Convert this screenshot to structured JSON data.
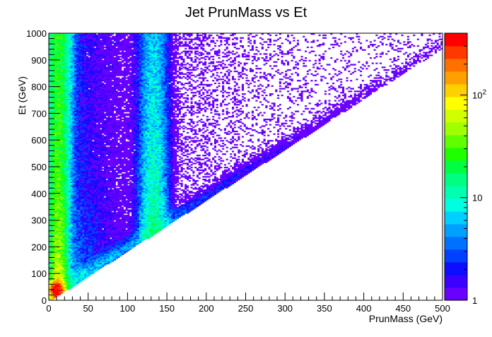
{
  "chart_data": {
    "type": "heatmap",
    "title": "Jet PrunMass vs Et",
    "xlabel": "PrunMass (GeV)",
    "ylabel": "Et (GeV)",
    "xlim": [
      0,
      500
    ],
    "ylim": [
      0,
      1000
    ],
    "x_ticks": [
      0,
      50,
      100,
      150,
      200,
      250,
      300,
      350,
      400,
      450,
      500
    ],
    "y_ticks": [
      0,
      100,
      200,
      300,
      400,
      500,
      600,
      700,
      800,
      900,
      1000
    ],
    "x_tick_labels": [
      "0",
      "50",
      "100",
      "150",
      "200",
      "250",
      "300",
      "350",
      "400",
      "450",
      "500"
    ],
    "y_tick_labels": [
      "0",
      "100",
      "200",
      "300",
      "400",
      "500",
      "600",
      "700",
      "800",
      "900",
      "1000"
    ],
    "z_scale": "log",
    "z_range": [
      1,
      400
    ],
    "colorbar_ticks": [
      {
        "value": 1,
        "label": "1",
        "exp": ""
      },
      {
        "value": 10,
        "label": "10",
        "exp": ""
      },
      {
        "value": 100,
        "label": "10",
        "exp": "2"
      }
    ],
    "colormap": [
      "#6a00ff",
      "#3c00ff",
      "#0d0dff",
      "#0040ff",
      "#0070ff",
      "#00a0ff",
      "#00d0ff",
      "#00ffe0",
      "#00ffb0",
      "#00ff80",
      "#00ff40",
      "#20ff00",
      "#60ff00",
      "#a0ff00",
      "#d0ff00",
      "#ffff00",
      "#ffd000",
      "#ffa000",
      "#ff7000",
      "#ff3800",
      "#ff0000"
    ],
    "grid": false,
    "legend": "none",
    "features": [
      {
        "name": "low-mass band",
        "x_center": 12,
        "x_width_at_top": 14,
        "description": "dense vertical band near zero mass extending to 1000 GeV"
      },
      {
        "name": "W/top peak band",
        "x_center": 135,
        "description": "vertical band around 120-150 GeV"
      },
      {
        "name": "diagonal edge",
        "description": "Et ≈ 1.9 × PrunMass lower boundary"
      },
      {
        "name": "hot spot",
        "x": 10,
        "y": 40,
        "value": 400
      }
    ]
  }
}
